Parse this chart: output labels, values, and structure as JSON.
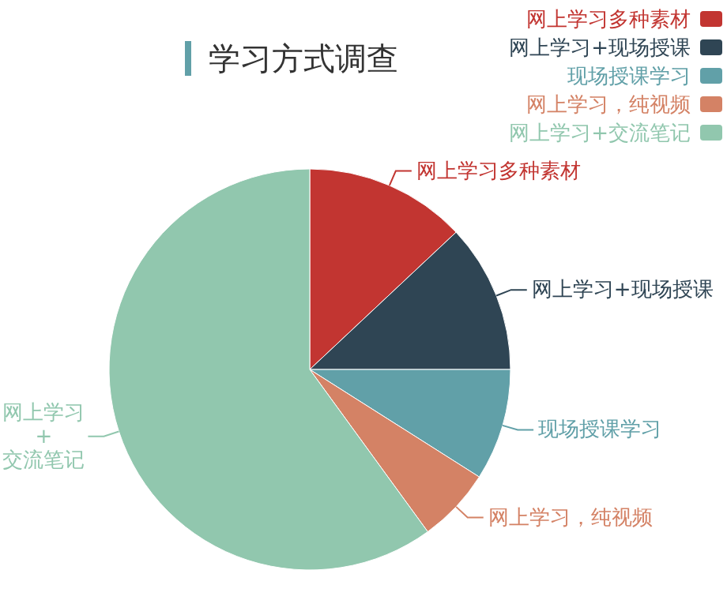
{
  "chart_data": {
    "type": "pie",
    "title": "学习方式调查",
    "categories": [
      "网上学习多种素材",
      "网上学习+现场授课",
      "现场授课学习",
      "网上学习，纯视频",
      "网上学习+交流笔记"
    ],
    "values": [
      13,
      12,
      9,
      6,
      60
    ],
    "colors": [
      "#c23531",
      "#2f4554",
      "#61a0a8",
      "#d48265",
      "#91c7ae"
    ],
    "legend": "top right"
  }
}
